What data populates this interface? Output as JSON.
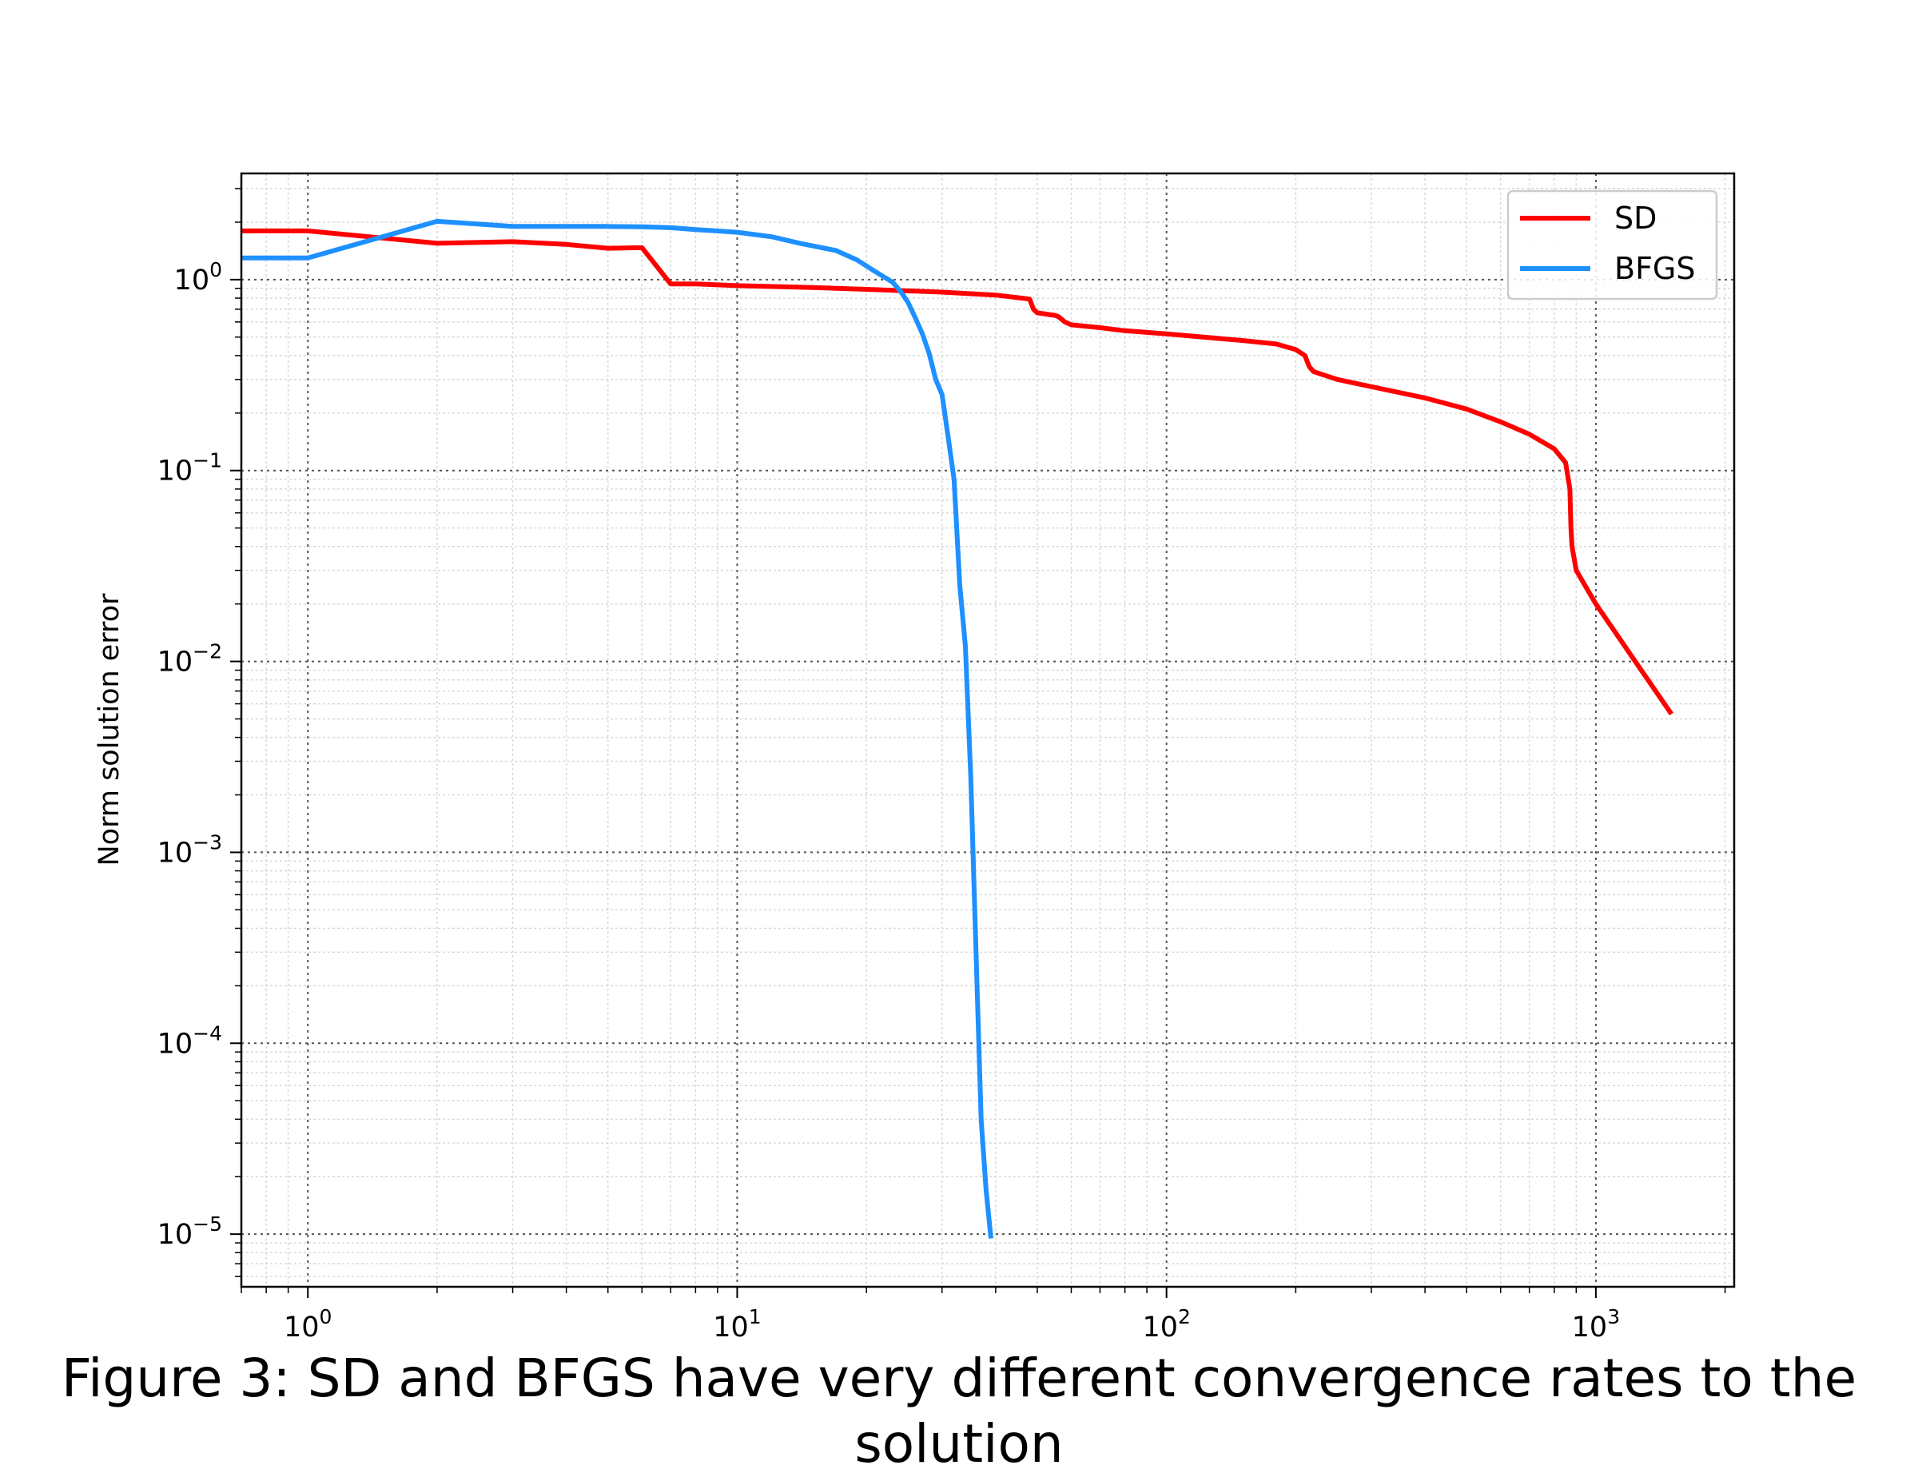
{
  "caption": "Figure 3: SD and BFGS have very different convergence rates to the solution",
  "chart_data": {
    "type": "line",
    "title": "",
    "xlabel": "",
    "ylabel": "Norm solution error",
    "xscale": "log",
    "yscale": "log",
    "xlim": [
      0.7,
      2100
    ],
    "ylim": [
      5.3e-06,
      3.6
    ],
    "grid": true,
    "legend_position": "top-right",
    "xticks": [
      {
        "value": 1,
        "base": "10",
        "exp": "0"
      },
      {
        "value": 10,
        "base": "10",
        "exp": "1"
      },
      {
        "value": 100,
        "base": "10",
        "exp": "2"
      },
      {
        "value": 1000,
        "base": "10",
        "exp": "3"
      }
    ],
    "yticks": [
      {
        "value": 1,
        "base": "10",
        "exp": "0"
      },
      {
        "value": 0.1,
        "base": "10",
        "exp": "−1"
      },
      {
        "value": 0.01,
        "base": "10",
        "exp": "−2"
      },
      {
        "value": 0.001,
        "base": "10",
        "exp": "−3"
      },
      {
        "value": 0.0001,
        "base": "10",
        "exp": "−4"
      },
      {
        "value": 1e-05,
        "base": "10",
        "exp": "−5"
      }
    ],
    "series": [
      {
        "name": "SD",
        "color": "#ff0000",
        "x": [
          0.7,
          1,
          2,
          3,
          4,
          5,
          6,
          7,
          8,
          10,
          15,
          20,
          30,
          40,
          46,
          48,
          49,
          50,
          55,
          56,
          57,
          58,
          60,
          70,
          80,
          100,
          150,
          180,
          200,
          210,
          215,
          220,
          250,
          300,
          400,
          500,
          600,
          700,
          800,
          850,
          870,
          875,
          880,
          900,
          1000,
          1200,
          1500
        ],
        "y": [
          1.8,
          1.8,
          1.55,
          1.58,
          1.53,
          1.46,
          1.47,
          0.95,
          0.95,
          0.93,
          0.91,
          0.89,
          0.86,
          0.83,
          0.8,
          0.79,
          0.7,
          0.67,
          0.65,
          0.64,
          0.62,
          0.6,
          0.58,
          0.56,
          0.54,
          0.52,
          0.48,
          0.46,
          0.43,
          0.4,
          0.35,
          0.33,
          0.3,
          0.275,
          0.24,
          0.21,
          0.18,
          0.155,
          0.13,
          0.11,
          0.08,
          0.05,
          0.04,
          0.03,
          0.02,
          0.011,
          0.0053
        ]
      },
      {
        "name": "BFGS",
        "color": "#1e90ff",
        "x": [
          0.7,
          1,
          2,
          3,
          4,
          5,
          6,
          7,
          8,
          10,
          12,
          14,
          17,
          19,
          21,
          23,
          24,
          25,
          26,
          27,
          28,
          29,
          30,
          31,
          32,
          33,
          34,
          35,
          36,
          37,
          38,
          39
        ],
        "y": [
          1.3,
          1.3,
          2.02,
          1.9,
          1.9,
          1.9,
          1.89,
          1.87,
          1.83,
          1.77,
          1.68,
          1.55,
          1.42,
          1.27,
          1.1,
          0.97,
          0.87,
          0.76,
          0.63,
          0.52,
          0.41,
          0.3,
          0.25,
          0.15,
          0.09,
          0.025,
          0.012,
          0.0025,
          0.0003,
          4e-05,
          1.7e-05,
          9.5e-06
        ]
      }
    ]
  }
}
